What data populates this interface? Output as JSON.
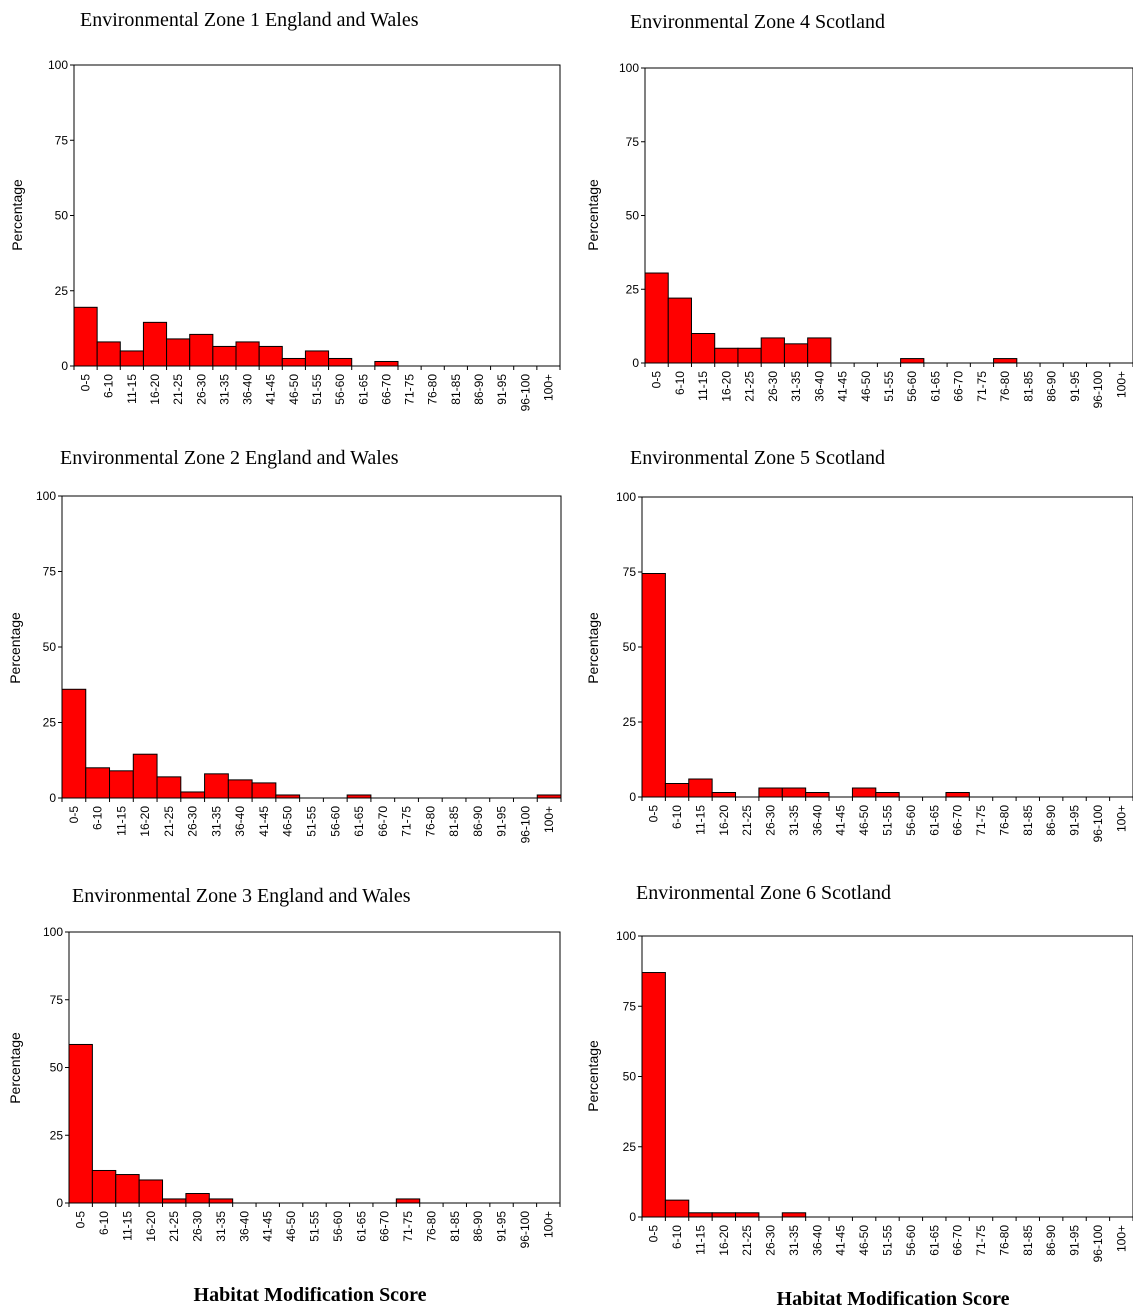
{
  "colors": {
    "bar": "#ff0000",
    "bar_edge": "#000000"
  },
  "xlabel_bottom": "Habitat Modification Score",
  "chart_data": [
    {
      "type": "bar",
      "title": "Environmental Zone 1 England and Wales",
      "ylabel": "Percentage",
      "ylim": [
        0,
        100
      ],
      "yticks": [
        "0",
        "25",
        "50",
        "75",
        "100"
      ],
      "categories": [
        "0-5",
        "6-10",
        "11-15",
        "16-20",
        "21-25",
        "26-30",
        "31-35",
        "36-40",
        "41-45",
        "46-50",
        "51-55",
        "56-60",
        "61-65",
        "66-70",
        "71-75",
        "76-80",
        "81-85",
        "86-90",
        "91-95",
        "96-100",
        "100+"
      ],
      "values": [
        19.5,
        8,
        5,
        14.5,
        9,
        10.5,
        6.5,
        8,
        6.5,
        2.5,
        5,
        2.5,
        0,
        1.5,
        0,
        0,
        0,
        0,
        0,
        0,
        0
      ]
    },
    {
      "type": "bar",
      "title": "Environmental Zone 4 Scotland",
      "ylabel": "Percentage",
      "ylim": [
        0,
        100
      ],
      "yticks": [
        "0",
        "25",
        "50",
        "75",
        "100"
      ],
      "categories": [
        "0-5",
        "6-10",
        "11-15",
        "16-20",
        "21-25",
        "26-30",
        "31-35",
        "36-40",
        "41-45",
        "46-50",
        "51-55",
        "56-60",
        "61-65",
        "66-70",
        "71-75",
        "76-80",
        "81-85",
        "86-90",
        "91-95",
        "96-100",
        "100+"
      ],
      "values": [
        30.5,
        22,
        10,
        5,
        5,
        8.5,
        6.5,
        8.5,
        0,
        0,
        0,
        1.5,
        0,
        0,
        0,
        1.5,
        0,
        0,
        0,
        0,
        0
      ]
    },
    {
      "type": "bar",
      "title": "Environmental Zone 2 England and Wales",
      "ylabel": "Percentage",
      "ylim": [
        0,
        100
      ],
      "yticks": [
        "0",
        "25",
        "50",
        "75",
        "100"
      ],
      "categories": [
        "0-5",
        "6-10",
        "11-15",
        "16-20",
        "21-25",
        "26-30",
        "31-35",
        "36-40",
        "41-45",
        "46-50",
        "51-55",
        "56-60",
        "61-65",
        "66-70",
        "71-75",
        "76-80",
        "81-85",
        "86-90",
        "91-95",
        "96-100",
        "100+"
      ],
      "values": [
        36,
        10,
        9,
        14.5,
        7,
        2,
        8,
        6,
        5,
        1,
        0,
        0,
        1,
        0,
        0,
        0,
        0,
        0,
        0,
        0,
        1
      ]
    },
    {
      "type": "bar",
      "title": "Environmental Zone 5 Scotland",
      "ylabel": "Percentage",
      "ylim": [
        0,
        100
      ],
      "yticks": [
        "0",
        "25",
        "50",
        "75",
        "100"
      ],
      "categories": [
        "0-5",
        "6-10",
        "11-15",
        "16-20",
        "21-25",
        "26-30",
        "31-35",
        "36-40",
        "41-45",
        "46-50",
        "51-55",
        "56-60",
        "61-65",
        "66-70",
        "71-75",
        "76-80",
        "81-85",
        "86-90",
        "91-95",
        "96-100",
        "100+"
      ],
      "values": [
        74.5,
        4.5,
        6,
        1.5,
        0,
        3,
        3,
        1.5,
        0,
        3,
        1.5,
        0,
        0,
        1.5,
        0,
        0,
        0,
        0,
        0,
        0,
        0
      ]
    },
    {
      "type": "bar",
      "title": "Environmental Zone 3 England and Wales",
      "ylabel": "Percentage",
      "ylim": [
        0,
        100
      ],
      "yticks": [
        "0",
        "25",
        "50",
        "75",
        "100"
      ],
      "categories": [
        "0-5",
        "6-10",
        "11-15",
        "16-20",
        "21-25",
        "26-30",
        "31-35",
        "36-40",
        "41-45",
        "46-50",
        "51-55",
        "56-60",
        "61-65",
        "66-70",
        "71-75",
        "76-80",
        "81-85",
        "86-90",
        "91-95",
        "96-100",
        "100+"
      ],
      "values": [
        58.5,
        12,
        10.5,
        8.5,
        1.5,
        3.5,
        1.5,
        0,
        0,
        0,
        0,
        0,
        0,
        0,
        1.5,
        0,
        0,
        0,
        0,
        0,
        0
      ]
    },
    {
      "type": "bar",
      "title": "Environmental Zone 6 Scotland",
      "ylabel": "Percentage",
      "ylim": [
        0,
        100
      ],
      "yticks": [
        "0",
        "25",
        "50",
        "75",
        "100"
      ],
      "categories": [
        "0-5",
        "6-10",
        "11-15",
        "16-20",
        "21-25",
        "26-30",
        "31-35",
        "36-40",
        "41-45",
        "46-50",
        "51-55",
        "56-60",
        "61-65",
        "66-70",
        "71-75",
        "76-80",
        "81-85",
        "86-90",
        "91-95",
        "96-100",
        "100+"
      ],
      "values": [
        87,
        6,
        1.5,
        1.5,
        1.5,
        0,
        1.5,
        0,
        0,
        0,
        0,
        0,
        0,
        0,
        0,
        0,
        0,
        0,
        0,
        0,
        0
      ]
    }
  ]
}
